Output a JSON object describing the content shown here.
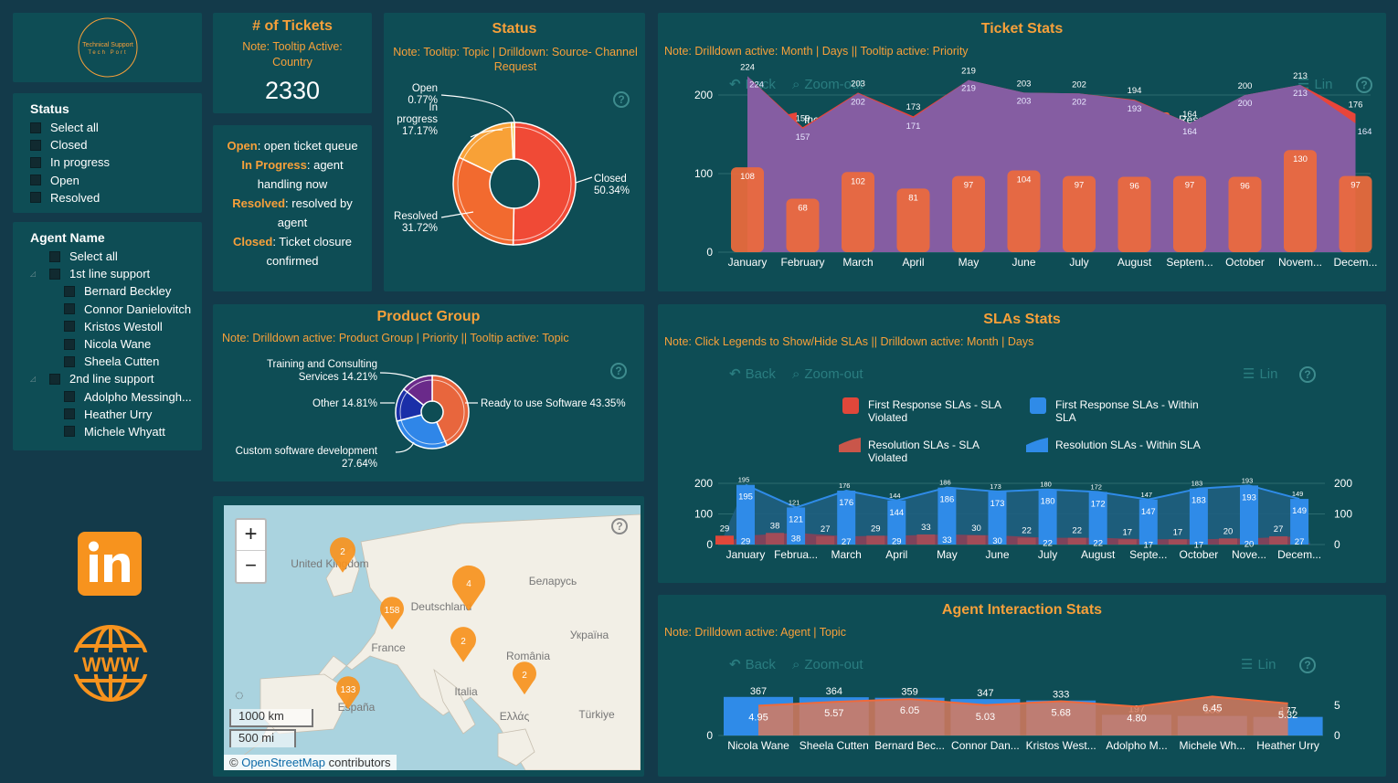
{
  "logo": {
    "line1": "Technical Support",
    "line2": "Tech Port"
  },
  "tickets_card": {
    "title": "# of Tickets",
    "note": "Note: Tooltip Active: Country",
    "value": "2330"
  },
  "legend_card": [
    {
      "key": "Open",
      "text": ": open ticket queue"
    },
    {
      "key": "In Progress",
      "text": ": agent handling now"
    },
    {
      "key": "Resolved",
      "text": ": resolved by agent"
    },
    {
      "key": "Closed",
      "text": ": Ticket closure confirmed"
    }
  ],
  "status_slicer": {
    "title": "Status",
    "items": [
      "Select all",
      "Closed",
      "In progress",
      "Open",
      "Resolved"
    ]
  },
  "agent_slicer": {
    "title": "Agent Name",
    "select_all": "Select all",
    "groups": [
      {
        "name": "1st line support",
        "agents": [
          "Bernard Beckley",
          "Connor Danielovitch",
          "Kristos Westoll",
          "Nicola Wane",
          "Sheela Cutten"
        ]
      },
      {
        "name": "2nd line support",
        "agents": [
          "Adolpho Messingh...",
          "Heather Urry",
          "Michele Whyatt"
        ]
      }
    ]
  },
  "status_panel": {
    "title": "Status",
    "note": "Note: Tooltip: Topic | Drilldown: Source- Channel Request",
    "chart_data": {
      "type": "pie",
      "slices": [
        {
          "name": "Closed",
          "value": 50.34,
          "label": "50.34%",
          "color": "#f04a36"
        },
        {
          "name": "Resolved",
          "value": 31.72,
          "label": "31.72%",
          "color": "#f26a2f"
        },
        {
          "name": "In progress",
          "value": 17.17,
          "label": "17.17%",
          "color": "#f8a137"
        },
        {
          "name": "Open",
          "value": 0.77,
          "label": "0.77%",
          "color": "#f2c94c"
        }
      ]
    }
  },
  "product_panel": {
    "title": "Product Group",
    "note": "Note: Drilldown active: Product Group | Priority || Tooltip active: Topic",
    "chart_data": {
      "type": "pie",
      "slices": [
        {
          "name": "Ready to use Software",
          "value": 43.35,
          "label": "Ready to use Software 43.35%",
          "color": "#e8663d"
        },
        {
          "name": "Custom software development",
          "value": 27.64,
          "label": "Custom software development 27.64%",
          "color": "#2f86e8"
        },
        {
          "name": "Other",
          "value": 14.81,
          "label": "Other 14.81%",
          "color": "#1a2fa8"
        },
        {
          "name": "Training and Consulting Services",
          "value": 14.21,
          "label": "Training and Consulting Services 14.21%",
          "color": "#6a2a8a"
        }
      ]
    }
  },
  "ticket_stats": {
    "title": "Ticket Stats",
    "note": "Note: Drilldown active: Month | Days || Tooltip active: Priority",
    "controls": {
      "back": "Back",
      "zoom": "Zoom-out",
      "lin": "Lin"
    },
    "chart_data": {
      "type": "area",
      "categories": [
        "January",
        "February",
        "March",
        "April",
        "May",
        "June",
        "July",
        "August",
        "Septem...",
        "October",
        "Novem...",
        "Decem..."
      ],
      "yticks": [
        0,
        100,
        200
      ],
      "ylim": [
        0,
        240
      ],
      "series": [
        {
          "name": "Incoming Ticket",
          "values": [
            224,
            159,
            203,
            173,
            219,
            203,
            202,
            194,
            164,
            200,
            213,
            176
          ],
          "color": "#e8453a"
        },
        {
          "name": "First Response",
          "values": [
            224,
            157,
            202,
            171,
            219,
            203,
            202,
            193,
            164,
            200,
            213,
            164
          ],
          "color": "#2f7fd8"
        },
        {
          "name": "Resolved Ticket",
          "values": [
            108,
            68,
            102,
            81,
            97,
            104,
            97,
            96,
            97,
            96,
            130,
            97
          ],
          "color": "#ee6a3c"
        }
      ]
    }
  },
  "slas_stats": {
    "title": "SLAs Stats",
    "note": "Note: Click Legends to Show/Hide SLAs || Drilldown active: Month | Days",
    "controls": {
      "back": "Back",
      "zoom": "Zoom-out",
      "lin": "Lin"
    },
    "chart_data": {
      "type": "bar",
      "categories": [
        "January",
        "Februa...",
        "March",
        "April",
        "May",
        "June",
        "July",
        "August",
        "Septe...",
        "October",
        "Nove...",
        "Decem..."
      ],
      "yticks": [
        0,
        100,
        200
      ],
      "ylim": [
        0,
        215
      ],
      "series": [
        {
          "name": "First Response SLAs - SLA Violated",
          "values": [
            29,
            38,
            27,
            29,
            33,
            30,
            22,
            22,
            17,
            17,
            20,
            27
          ],
          "color": "#e0473a"
        },
        {
          "name": "First Response SLAs - Within SLA",
          "values": [
            195,
            121,
            176,
            144,
            186,
            173,
            180,
            172,
            147,
            183,
            193,
            149
          ],
          "color": "#2f8be8"
        },
        {
          "name": "Resolution SLAs - SLA Violated",
          "values": [
            29,
            38,
            27,
            29,
            33,
            30,
            22,
            22,
            17,
            17,
            20,
            27
          ],
          "color": "#c9564a"
        },
        {
          "name": "Resolution SLAs - Within SLA",
          "values": [
            195,
            121,
            176,
            144,
            186,
            173,
            180,
            172,
            147,
            183,
            193,
            149
          ],
          "color": "#2f8be8"
        }
      ]
    }
  },
  "agent_stats": {
    "title": "Agent Interaction Stats",
    "note": "Note: Drilldown active: Agent | Topic",
    "controls": {
      "back": "Back",
      "zoom": "Zoom-out",
      "lin": "Lin"
    },
    "chart_data": {
      "type": "bar",
      "categories": [
        "Nicola Wane",
        "Sheela Cutten",
        "Bernard Bec...",
        "Connor Dan...",
        "Kristos West...",
        "Adolpho M...",
        "Michele Wh...",
        "Heather Urry"
      ],
      "yticks_left": [
        0
      ],
      "yticks_right": [
        0,
        5
      ],
      "series": [
        {
          "name": "Interactions",
          "values": [
            367,
            364,
            359,
            347,
            333,
            197,
            186,
            177
          ],
          "color": "#2f8be8"
        },
        {
          "name": "Average",
          "values": [
            4.95,
            5.57,
            6.05,
            5.03,
            5.68,
            4.8,
            6.45,
            5.32
          ],
          "color": "#ee6a3c"
        }
      ]
    }
  },
  "map": {
    "zoom_in": "+",
    "zoom_out": "−",
    "scale_km": "1000 km",
    "scale_mi": "500 mi",
    "attribution_prefix": "© ",
    "attribution_link": "OpenStreetMap",
    "attribution_suffix": " contributors",
    "labels": [
      "United Kingdom",
      "Deutschland",
      "Беларусь",
      "France",
      "Україна",
      "România",
      "Italia",
      "España",
      "Ελλάς",
      "Türkiye"
    ],
    "markers": [
      "2",
      "4",
      "158",
      "2",
      "2",
      "133"
    ]
  }
}
